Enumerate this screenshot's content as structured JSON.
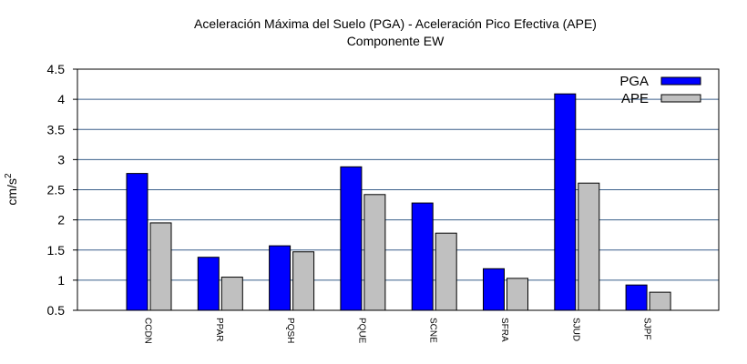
{
  "chart_data": {
    "type": "bar",
    "title": "Aceleración Máxima del Suelo (PGA) -  Aceleración Pico Efectiva (APE)",
    "subtitle": "Componente EW",
    "xlabel": "",
    "ylabel": "cm/s",
    "ylabel_superscript": "2",
    "ylim": [
      0.5,
      4.5
    ],
    "yticks": [
      "0.5",
      "1",
      "1.5",
      "2",
      "2.5",
      "3",
      "3.5",
      "4",
      "4.5"
    ],
    "grid": "horizontal",
    "legend_position": "top-right",
    "categories": [
      "CCDN",
      "PPAR",
      "PQSH",
      "PQUE",
      "SCNE",
      "SFRA",
      "SJUD",
      "SJPF"
    ],
    "series": [
      {
        "name": "PGA",
        "color": "#0000ff",
        "values": [
          2.77,
          1.38,
          1.57,
          2.88,
          2.28,
          1.19,
          4.09,
          0.92
        ]
      },
      {
        "name": "APE",
        "color": "#c0c0c0",
        "values": [
          1.95,
          1.05,
          1.47,
          2.42,
          1.78,
          1.03,
          2.61,
          0.8
        ]
      }
    ],
    "colors": {
      "grid": "#3a5f8a",
      "axis": "#000000"
    }
  }
}
